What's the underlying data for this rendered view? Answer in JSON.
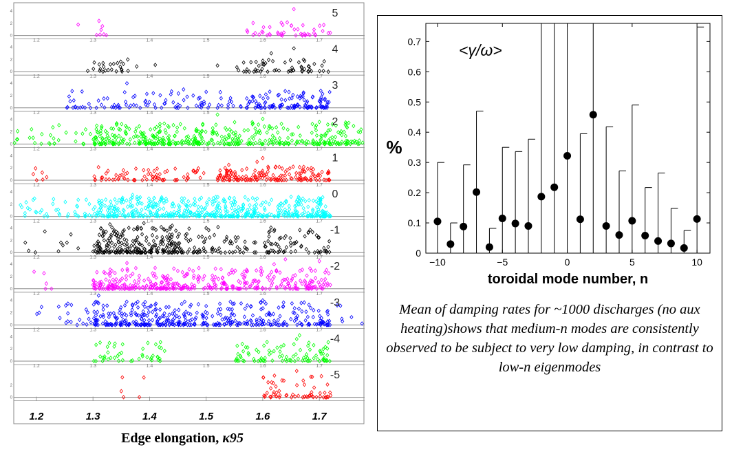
{
  "chart_data": [
    {
      "type": "scatter",
      "name": "edge-elongation-mode-scatter",
      "xlabel_prefix": "Edge elongation, ",
      "xlabel_symbol": "κ95",
      "xlim": [
        1.16,
        1.78
      ],
      "x_ticks": [
        "1.2",
        "1.3",
        "1.4",
        "1.5",
        "1.6",
        "1.7"
      ],
      "strip_x_ticks": [
        "1.2",
        "1.3",
        "1.4",
        "1.5",
        "1.6",
        "1.7"
      ],
      "strip_y_ticks": [
        "0",
        "2",
        "4"
      ],
      "series": [
        {
          "label": "5",
          "color": "#ff00ff",
          "ranges": [
            [
              1.26,
              1.34,
              8
            ],
            [
              1.57,
              1.72,
              45
            ]
          ],
          "max_y": 2.4,
          "outliers": [
            [
              1.655,
              4.3
            ],
            [
              1.8,
              0.4
            ]
          ]
        },
        {
          "label": "4",
          "color": "#000000",
          "ranges": [
            [
              1.29,
              1.38,
              25
            ],
            [
              1.55,
              1.72,
              55
            ]
          ],
          "max_y": 2.0,
          "outliers": [
            [
              1.655,
              3.8
            ],
            [
              1.615,
              3.0
            ],
            [
              1.41,
              1.1
            ],
            [
              1.52,
              1.0
            ]
          ]
        },
        {
          "label": "3",
          "color": "#0000ff",
          "ranges": [
            [
              1.25,
              1.55,
              90
            ],
            [
              1.56,
              1.72,
              120
            ]
          ],
          "max_y": 2.8,
          "outliers": [
            [
              1.36,
              4.0
            ],
            [
              1.46,
              3.0
            ],
            [
              1.5,
              2.6
            ],
            [
              1.7,
              1.1
            ]
          ]
        },
        {
          "label": "2",
          "color": "#00ff00",
          "ranges": [
            [
              1.15,
              1.3,
              30
            ],
            [
              1.3,
              1.5,
              230
            ],
            [
              1.5,
              1.8,
              250
            ]
          ],
          "max_y": 3.6,
          "outliers": [
            [
              1.52,
              4.8
            ],
            [
              1.6,
              4.1
            ],
            [
              1.7,
              3.6
            ],
            [
              1.27,
              1.8
            ],
            [
              1.82,
              1.0
            ]
          ]
        },
        {
          "label": "1",
          "color": "#ff0000",
          "ranges": [
            [
              1.19,
              1.22,
              6
            ],
            [
              1.3,
              1.5,
              70
            ],
            [
              1.52,
              1.72,
              160
            ]
          ],
          "max_y": 2.2,
          "outliers": [
            [
              1.6,
              3.6
            ],
            [
              1.54,
              2.5
            ],
            [
              1.59,
              3.0
            ]
          ]
        },
        {
          "label": "0",
          "color": "#00ffff",
          "ranges": [
            [
              1.17,
              1.3,
              40
            ],
            [
              1.3,
              1.72,
              520
            ]
          ],
          "max_y": 3.2,
          "outliers": [
            [
              1.37,
              3.5
            ],
            [
              1.65,
              3.2
            ],
            [
              1.42,
              2.6
            ]
          ]
        },
        {
          "label": "-1",
          "color": "#000000",
          "ranges": [
            [
              1.18,
              1.3,
              10
            ],
            [
              1.3,
              1.45,
              230
            ],
            [
              1.45,
              1.72,
              140
            ]
          ],
          "max_y": 4.2,
          "outliers": [
            [
              1.33,
              4.6
            ],
            [
              1.5,
              4.0
            ],
            [
              1.44,
              4.4
            ],
            [
              1.62,
              3.5
            ],
            [
              1.39,
              4.8
            ]
          ]
        },
        {
          "label": "-2",
          "color": "#ff00ff",
          "ranges": [
            [
              1.19,
              1.23,
              5
            ],
            [
              1.3,
              1.45,
              170
            ],
            [
              1.45,
              1.72,
              220
            ]
          ],
          "max_y": 3.4,
          "outliers": [
            [
              1.64,
              4.8
            ],
            [
              1.7,
              4.5
            ],
            [
              1.36,
              4.2
            ],
            [
              1.62,
              4.0
            ]
          ]
        },
        {
          "label": "-3",
          "color": "#0000ff",
          "ranges": [
            [
              1.2,
              1.3,
              20
            ],
            [
              1.3,
              1.45,
              180
            ],
            [
              1.45,
              1.72,
              220
            ],
            [
              1.72,
              1.8,
              8
            ]
          ],
          "max_y": 3.8,
          "outliers": [
            [
              1.31,
              4.8
            ],
            [
              1.41,
              3.3
            ],
            [
              1.6,
              4.0
            ]
          ]
        },
        {
          "label": "-4",
          "color": "#00ff00",
          "ranges": [
            [
              1.29,
              1.43,
              45
            ],
            [
              1.55,
              1.72,
              90
            ]
          ],
          "max_y": 3.2,
          "outliers": [
            [
              1.665,
              4.2
            ],
            [
              1.66,
              3.6
            ]
          ]
        },
        {
          "label": "-5",
          "color": "#ff0000",
          "ranges": [
            [
              1.34,
              1.4,
              4
            ],
            [
              1.6,
              1.72,
              60
            ]
          ],
          "max_y": 3.8,
          "outliers": [
            [
              1.66,
              4.3
            ],
            [
              1.35,
              1.0
            ],
            [
              1.72,
              0.3
            ]
          ]
        }
      ]
    },
    {
      "type": "scatter",
      "name": "damping-rate-vs-mode",
      "annotation": "<γ/ω>",
      "ylabel": "%",
      "xlabel": "toroidal mode number, n",
      "xlim": [
        -10.9,
        11.0
      ],
      "ylim": [
        0,
        0.76
      ],
      "x_ticks": [
        -10,
        -5,
        0,
        5,
        10
      ],
      "x_tick_labels": [
        "−10",
        "−5",
        "0",
        "5",
        "10"
      ],
      "y_ticks": [
        0,
        0.1,
        0.2,
        0.3,
        0.4,
        0.5,
        0.6,
        0.7
      ],
      "y_tick_labels": [
        "0",
        "0.1",
        "0.2",
        "0.3",
        "0.4",
        "0.5",
        "0.6",
        "0.7"
      ],
      "points": [
        {
          "n": -10,
          "mean": 0.105,
          "upper": 0.3
        },
        {
          "n": -9,
          "mean": 0.03,
          "upper": 0.1
        },
        {
          "n": -8,
          "mean": 0.088,
          "upper": 0.292
        },
        {
          "n": -7,
          "mean": 0.202,
          "upper": 0.47
        },
        {
          "n": -6,
          "mean": 0.02,
          "upper": 0.082
        },
        {
          "n": -5,
          "mean": 0.115,
          "upper": 0.35
        },
        {
          "n": -4,
          "mean": 0.098,
          "upper": 0.336
        },
        {
          "n": -3,
          "mean": 0.09,
          "upper": 0.377
        },
        {
          "n": -2,
          "mean": 0.187,
          "upper": 0.76
        },
        {
          "n": -1,
          "mean": 0.218,
          "upper": 0.76
        },
        {
          "n": 0,
          "mean": 0.322,
          "upper": 0.76
        },
        {
          "n": 1,
          "mean": 0.112,
          "upper": 0.395
        },
        {
          "n": 2,
          "mean": 0.458,
          "upper": 0.76
        },
        {
          "n": 3,
          "mean": 0.09,
          "upper": 0.418
        },
        {
          "n": 4,
          "mean": 0.06,
          "upper": 0.272
        },
        {
          "n": 5,
          "mean": 0.107,
          "upper": 0.49
        },
        {
          "n": 6,
          "mean": 0.058,
          "upper": 0.217
        },
        {
          "n": 7,
          "mean": 0.04,
          "upper": 0.265
        },
        {
          "n": 8,
          "mean": 0.032,
          "upper": 0.148
        },
        {
          "n": 9,
          "mean": 0.017,
          "upper": 0.075
        },
        {
          "n": 10,
          "mean": 0.113,
          "upper": 0.748
        }
      ]
    }
  ],
  "caption": "Mean of damping rates for ~1000 discharges (no aux heating)shows that medium-n modes are consistently observed to be subject to very low damping, in contrast to low-n eigenmodes"
}
